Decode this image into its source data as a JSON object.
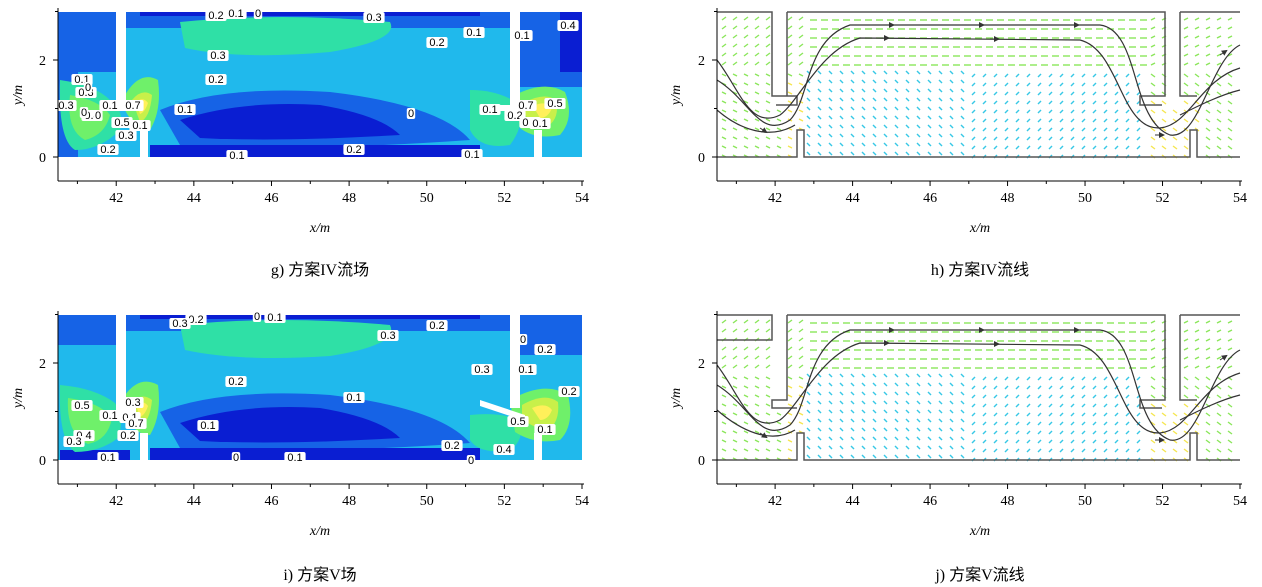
{
  "colors": {
    "level_0": "#0a1ed2",
    "level_1": "#1663e6",
    "level_2": "#20b9ec",
    "level_3": "#2fe0a6",
    "level_4": "#6ff06a",
    "level_5": "#c8f04a",
    "level_6": "#fff05a",
    "wall": "#555555",
    "vector_blue": "#37c8e6",
    "vector_green": "#8ae65a",
    "vector_yellow": "#f5e650",
    "streamline": "#333333"
  },
  "chart_data": [
    {
      "id": "g",
      "type": "contour",
      "caption": "g) 方案IV流场",
      "xlabel": "x/m",
      "ylabel": "y/m",
      "xlim": [
        40.5,
        54
      ],
      "ylim": [
        -0.6,
        3.0
      ],
      "xticks": [
        "42",
        "44",
        "46",
        "48",
        "50",
        "52",
        "54"
      ],
      "yticks": [
        "0",
        "2"
      ],
      "contour_labels": [
        "0.2",
        "0.1",
        "0",
        "0.3",
        "0.3",
        "0.2",
        "0.2",
        "0.1",
        "0.1",
        "0",
        "0.1",
        "0.4",
        "0.3",
        "0.1",
        "0.3",
        "0.4",
        "0",
        "0.7",
        "0.1",
        "0.5",
        "0.3",
        "0.1",
        "0.2",
        "0.1",
        "0",
        "0.1",
        "0",
        "0.1",
        "0.2",
        "0.7",
        "0.5",
        "0.4",
        "0.2",
        "0.1"
      ]
    },
    {
      "id": "h",
      "type": "vector_streamline",
      "caption": "h) 方案IV流线",
      "xlabel": "x/m",
      "ylabel": "y/m",
      "xlim": [
        40.5,
        54
      ],
      "ylim": [
        -0.6,
        3.0
      ],
      "xticks": [
        "42",
        "44",
        "46",
        "48",
        "50",
        "52",
        "54"
      ],
      "yticks": [
        "0",
        "2"
      ]
    },
    {
      "id": "i",
      "type": "contour",
      "caption": "i) 方案V场",
      "xlabel": "x/m",
      "ylabel": "y/m",
      "xlim": [
        40.5,
        54
      ],
      "ylim": [
        -0.6,
        3.0
      ],
      "xticks": [
        "42",
        "44",
        "46",
        "48",
        "50",
        "52",
        "54"
      ],
      "yticks": [
        "0",
        "2"
      ],
      "contour_labels": [
        "0.2",
        "0",
        "0.1",
        "0.3",
        "0.3",
        "0.2",
        "0",
        "0.2",
        "0.1",
        "0.1",
        "0",
        "0.1",
        "0.1",
        "0.2",
        "0.5",
        "0.4",
        "0.3",
        "0.1",
        "0.3",
        "0.2",
        "0.7",
        "0.1",
        "0.2",
        "0",
        "0.4",
        "0.5",
        "0.1",
        "0.2",
        "0.3",
        "0.1"
      ]
    },
    {
      "id": "j",
      "type": "vector_streamline",
      "caption": "j) 方案V流线",
      "xlabel": "x/m",
      "ylabel": "y/m",
      "xlim": [
        40.5,
        54
      ],
      "ylim": [
        -0.6,
        3.0
      ],
      "xticks": [
        "42",
        "44",
        "46",
        "48",
        "50",
        "52",
        "54"
      ],
      "yticks": [
        "0",
        "2"
      ]
    }
  ]
}
